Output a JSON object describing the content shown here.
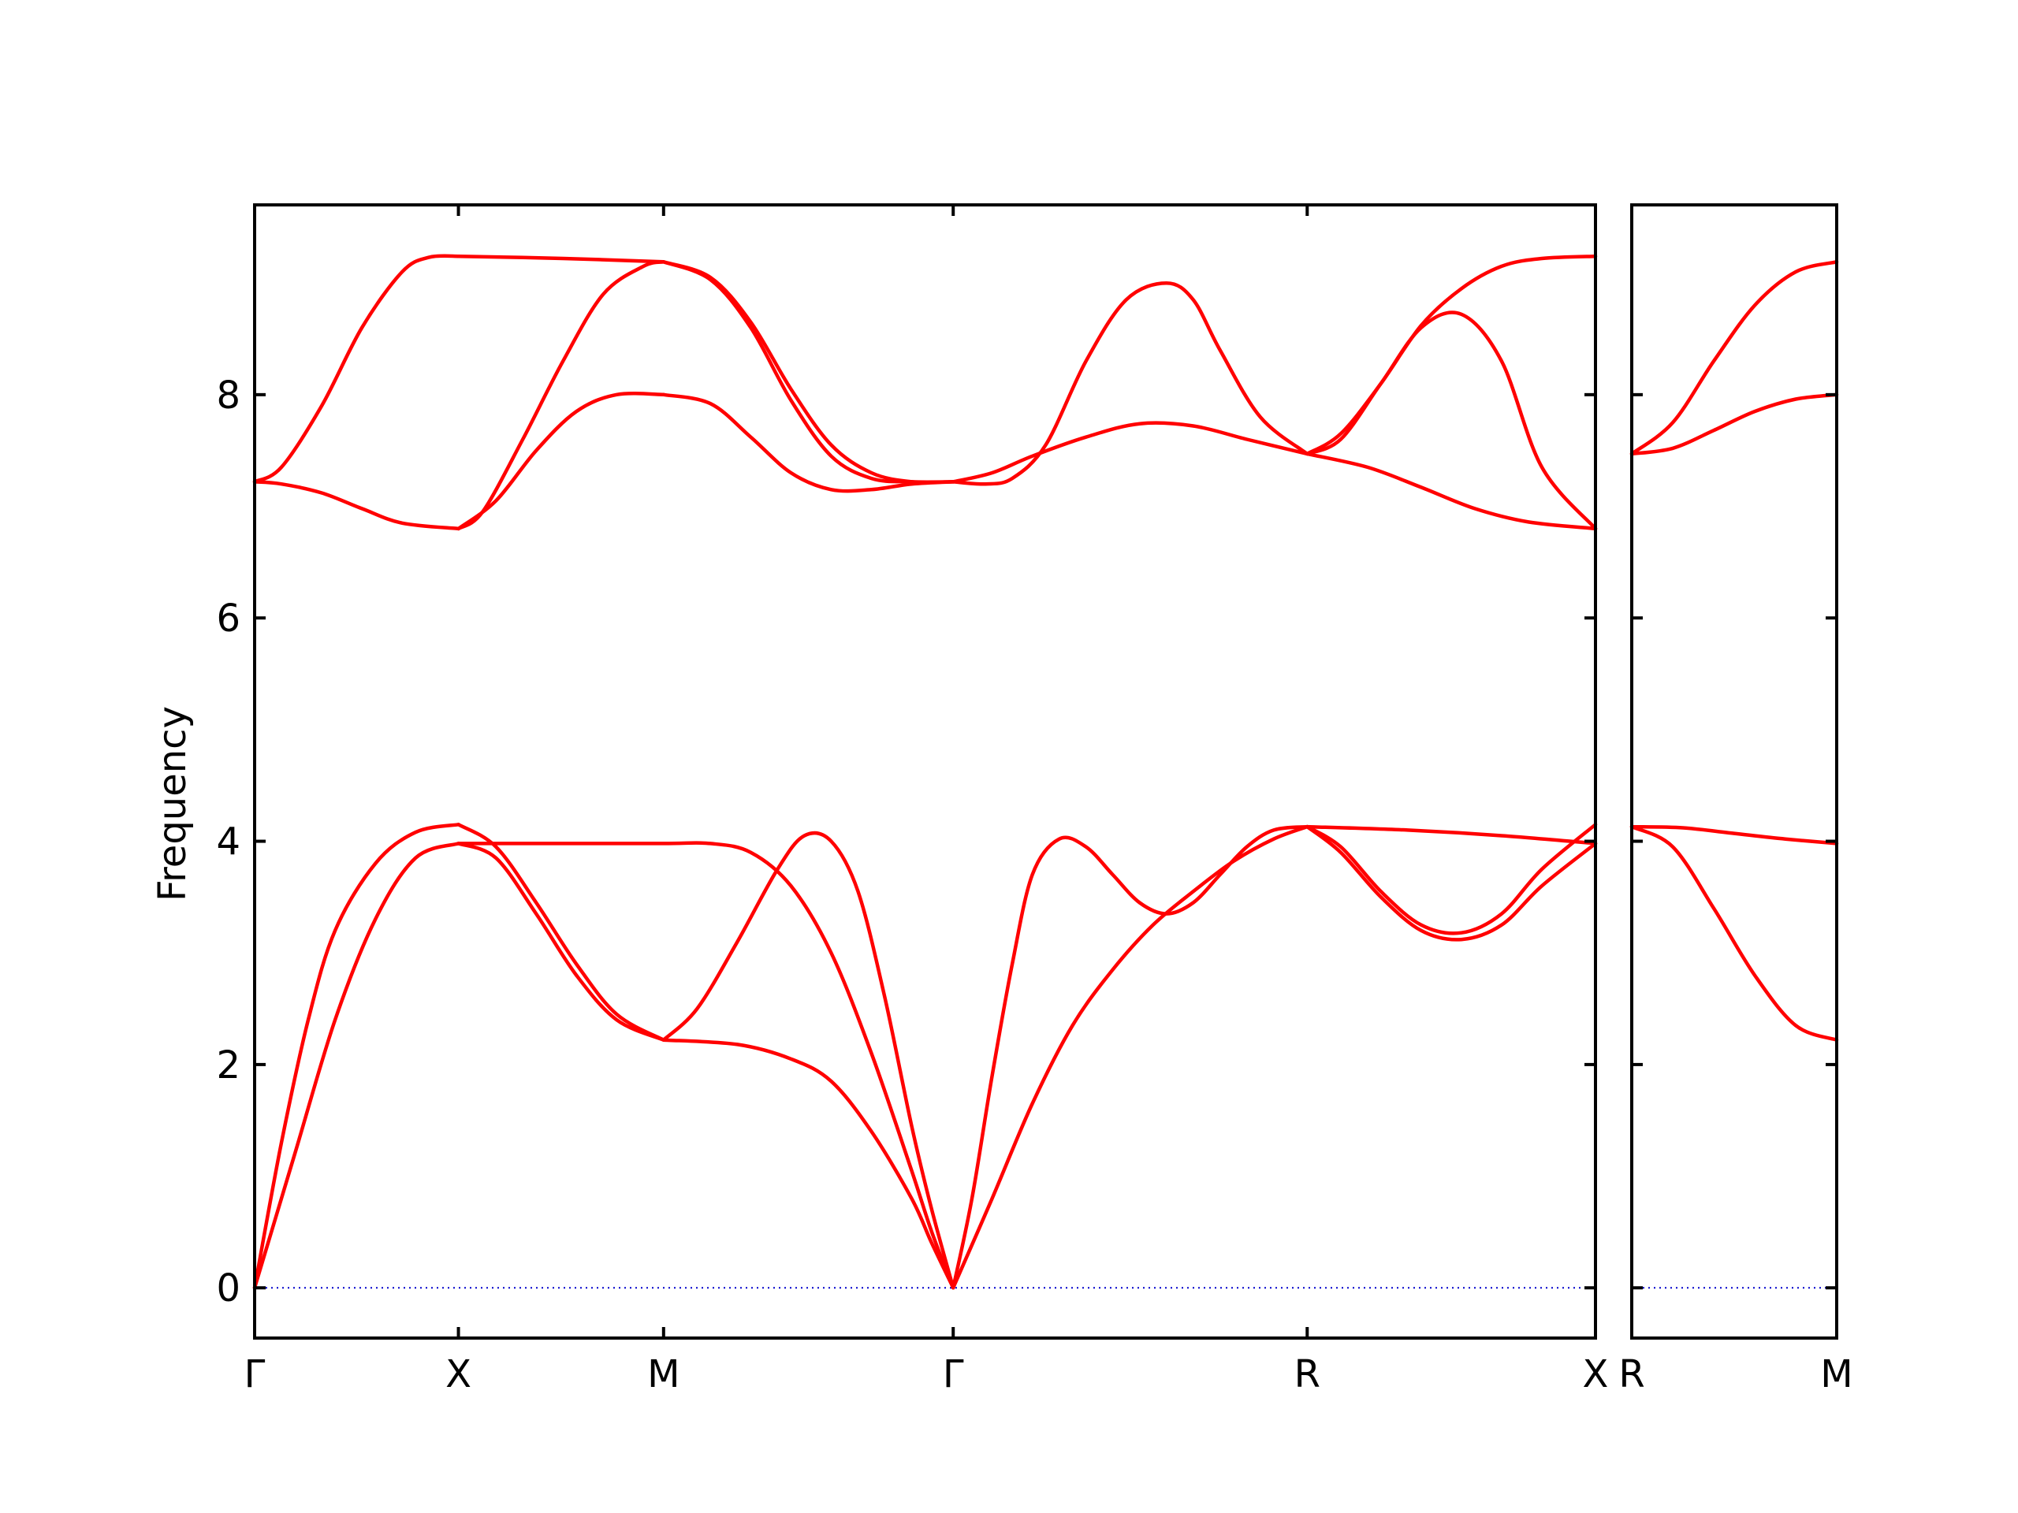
{
  "chart_data": {
    "type": "line",
    "title": "",
    "ylabel": "Frequency",
    "xlabel": "",
    "ylim": [
      -0.45,
      9.7
    ],
    "yticks": [
      0,
      2,
      4,
      6,
      8
    ],
    "grid": false,
    "legend": "none",
    "colors": {
      "band": "#ff0000",
      "zero_line": "#0000cc",
      "frame": "#000000"
    },
    "panels": [
      {
        "name": "main",
        "x_range": [
          0,
          1
        ],
        "ticks": [
          {
            "label": "Γ",
            "x": 0.0
          },
          {
            "label": "X",
            "x": 0.152
          },
          {
            "label": "M",
            "x": 0.305
          },
          {
            "label": "Γ",
            "x": 0.521
          },
          {
            "label": "R",
            "x": 0.785
          },
          {
            "label": "X",
            "x": 1.0
          }
        ],
        "bands": [
          {
            "x": [
              0,
              0.02,
              0.05,
              0.08,
              0.11,
              0.152
            ],
            "y": [
              7.22,
              7.2,
              7.12,
              6.98,
              6.85,
              6.8
            ]
          },
          {
            "x": [
              0.152,
              0.18,
              0.21,
              0.24,
              0.27,
              0.305
            ],
            "y": [
              6.8,
              7.05,
              7.5,
              7.85,
              8.0,
              8.0
            ]
          },
          {
            "x": [
              0.305,
              0.34,
              0.37,
              0.4,
              0.43,
              0.46,
              0.49,
              0.521
            ],
            "y": [
              8.0,
              7.92,
              7.62,
              7.3,
              7.15,
              7.15,
              7.2,
              7.22
            ]
          },
          {
            "x": [
              0.521,
              0.55,
              0.58,
              0.62,
              0.66,
              0.7,
              0.74,
              0.785
            ],
            "y": [
              7.22,
              7.3,
              7.45,
              7.62,
              7.74,
              7.72,
              7.6,
              7.47
            ]
          },
          {
            "x": [
              0.785,
              0.83,
              0.87,
              0.91,
              0.95,
              1.0
            ],
            "y": [
              7.47,
              7.35,
              7.17,
              6.98,
              6.86,
              6.8
            ]
          },
          {
            "x": [
              0,
              0.02,
              0.05,
              0.08,
              0.11,
              0.13,
              0.152
            ],
            "y": [
              7.22,
              7.35,
              7.9,
              8.6,
              9.1,
              9.23,
              9.24
            ]
          },
          {
            "x": [
              0.152,
              0.23,
              0.305
            ],
            "y": [
              9.24,
              9.22,
              9.19
            ]
          },
          {
            "x": [
              0.305,
              0.34,
              0.37,
              0.4,
              0.43,
              0.46,
              0.49,
              0.521
            ],
            "y": [
              9.19,
              9.05,
              8.65,
              8.05,
              7.55,
              7.3,
              7.22,
              7.22
            ]
          },
          {
            "x": [
              0.521,
              0.545,
              0.565,
              0.59,
              0.62,
              0.65,
              0.68,
              0.7,
              0.72,
              0.75,
              0.785
            ],
            "y": [
              7.22,
              7.2,
              7.25,
              7.55,
              8.3,
              8.85,
              9.0,
              8.85,
              8.4,
              7.8,
              7.47
            ]
          },
          {
            "x": [
              0.785,
              0.81,
              0.84,
              0.87,
              0.9,
              0.93,
              0.96,
              1.0
            ],
            "y": [
              7.47,
              7.65,
              8.1,
              8.62,
              8.95,
              9.15,
              9.22,
              9.24
            ]
          },
          {
            "x": [
              0.152,
              0.17,
              0.2,
              0.23,
              0.26,
              0.29,
              0.305
            ],
            "y": [
              6.8,
              6.95,
              7.6,
              8.3,
              8.9,
              9.15,
              9.19
            ]
          },
          {
            "x": [
              0.305,
              0.34,
              0.37,
              0.4,
              0.43,
              0.46,
              0.49,
              0.521
            ],
            "y": [
              9.19,
              9.03,
              8.6,
              7.95,
              7.45,
              7.25,
              7.22,
              7.22
            ]
          },
          {
            "x": [
              0.785,
              0.81,
              0.84,
              0.87,
              0.9,
              0.93,
              0.96,
              1.0
            ],
            "y": [
              7.47,
              7.6,
              8.1,
              8.6,
              8.72,
              8.3,
              7.35,
              6.8
            ]
          },
          {
            "x": [
              0,
              0.02,
              0.04,
              0.06,
              0.09,
              0.12,
              0.152
            ],
            "y": [
              0,
              1.3,
              2.4,
              3.2,
              3.8,
              4.08,
              4.15
            ]
          },
          {
            "x": [
              0.152,
              0.18,
              0.21,
              0.24,
              0.27,
              0.305
            ],
            "y": [
              4.15,
              3.95,
              3.45,
              2.9,
              2.45,
              2.22
            ]
          },
          {
            "x": [
              0.305,
              0.33,
              0.36,
              0.39,
              0.41,
              0.43,
              0.45,
              0.47,
              0.49,
              0.505,
              0.521
            ],
            "y": [
              2.22,
              2.5,
              3.1,
              3.75,
              4.05,
              4.0,
              3.55,
              2.6,
              1.45,
              0.7,
              0.0
            ]
          },
          {
            "x": [
              0.521,
              0.535,
              0.55,
              0.565,
              0.58,
              0.6,
              0.62,
              0.64,
              0.66,
              0.68,
              0.7,
              0.72,
              0.74,
              0.76,
              0.785
            ],
            "y": [
              0.0,
              0.8,
              1.9,
              2.9,
              3.7,
              4.02,
              3.95,
              3.7,
              3.45,
              3.35,
              3.45,
              3.7,
              3.95,
              4.1,
              4.13
            ]
          },
          {
            "x": [
              0.785,
              0.81,
              0.84,
              0.87,
              0.9,
              0.93,
              0.96,
              1.0
            ],
            "y": [
              4.13,
              3.9,
              3.5,
              3.2,
              3.12,
              3.25,
              3.6,
              3.98
            ]
          },
          {
            "x": [
              0,
              0.03,
              0.06,
              0.09,
              0.12,
              0.152
            ],
            "y": [
              0,
              1.2,
              2.4,
              3.3,
              3.85,
              3.98
            ]
          },
          {
            "x": [
              0.152,
              0.23,
              0.305,
              0.34,
              0.37,
              0.4,
              0.43,
              0.46,
              0.49,
              0.505,
              0.521
            ],
            "y": [
              3.98,
              3.98,
              3.98,
              3.98,
              3.9,
              3.6,
              3.0,
              2.1,
              1.05,
              0.5,
              0.0
            ]
          },
          {
            "x": [
              0.521,
              0.55,
              0.58,
              0.61,
              0.64,
              0.67,
              0.7,
              0.73,
              0.76,
              0.785
            ],
            "y": [
              0.0,
              0.8,
              1.65,
              2.35,
              2.85,
              3.25,
              3.55,
              3.82,
              4.02,
              4.13
            ]
          },
          {
            "x": [
              0.785,
              0.86,
              0.93,
              1.0
            ],
            "y": [
              4.13,
              4.1,
              4.05,
              3.98
            ]
          },
          {
            "x": [
              0.152,
              0.18,
              0.21,
              0.24,
              0.27,
              0.305
            ],
            "y": [
              3.98,
              3.85,
              3.35,
              2.8,
              2.4,
              2.22
            ]
          },
          {
            "x": [
              0.305,
              0.36,
              0.4,
              0.43,
              0.46,
              0.49,
              0.505,
              0.521
            ],
            "y": [
              2.22,
              2.18,
              2.05,
              1.85,
              1.4,
              0.8,
              0.4,
              0.0
            ]
          },
          {
            "x": [
              0.785,
              0.81,
              0.84,
              0.87,
              0.9,
              0.93,
              0.96,
              1.0
            ],
            "y": [
              4.13,
              3.95,
              3.55,
              3.25,
              3.18,
              3.35,
              3.75,
              4.15
            ]
          }
        ]
      },
      {
        "name": "side",
        "x_range": [
          0,
          1
        ],
        "ticks": [
          {
            "label": "R",
            "x": 0.0
          },
          {
            "label": "M",
            "x": 1.0
          }
        ],
        "bands": [
          {
            "x": [
              0,
              0.2,
              0.4,
              0.6,
              0.8,
              1.0
            ],
            "y": [
              7.47,
              7.52,
              7.68,
              7.85,
              7.96,
              8.0
            ]
          },
          {
            "x": [
              0,
              0.2,
              0.4,
              0.6,
              0.8,
              1.0
            ],
            "y": [
              7.47,
              7.75,
              8.3,
              8.8,
              9.1,
              9.19
            ]
          },
          {
            "x": [
              0,
              0.25,
              0.5,
              0.75,
              1.0
            ],
            "y": [
              4.13,
              4.12,
              4.07,
              4.02,
              3.98
            ]
          },
          {
            "x": [
              0,
              0.2,
              0.4,
              0.6,
              0.8,
              1.0
            ],
            "y": [
              4.13,
              3.95,
              3.4,
              2.8,
              2.35,
              2.22
            ]
          }
        ]
      }
    ]
  }
}
